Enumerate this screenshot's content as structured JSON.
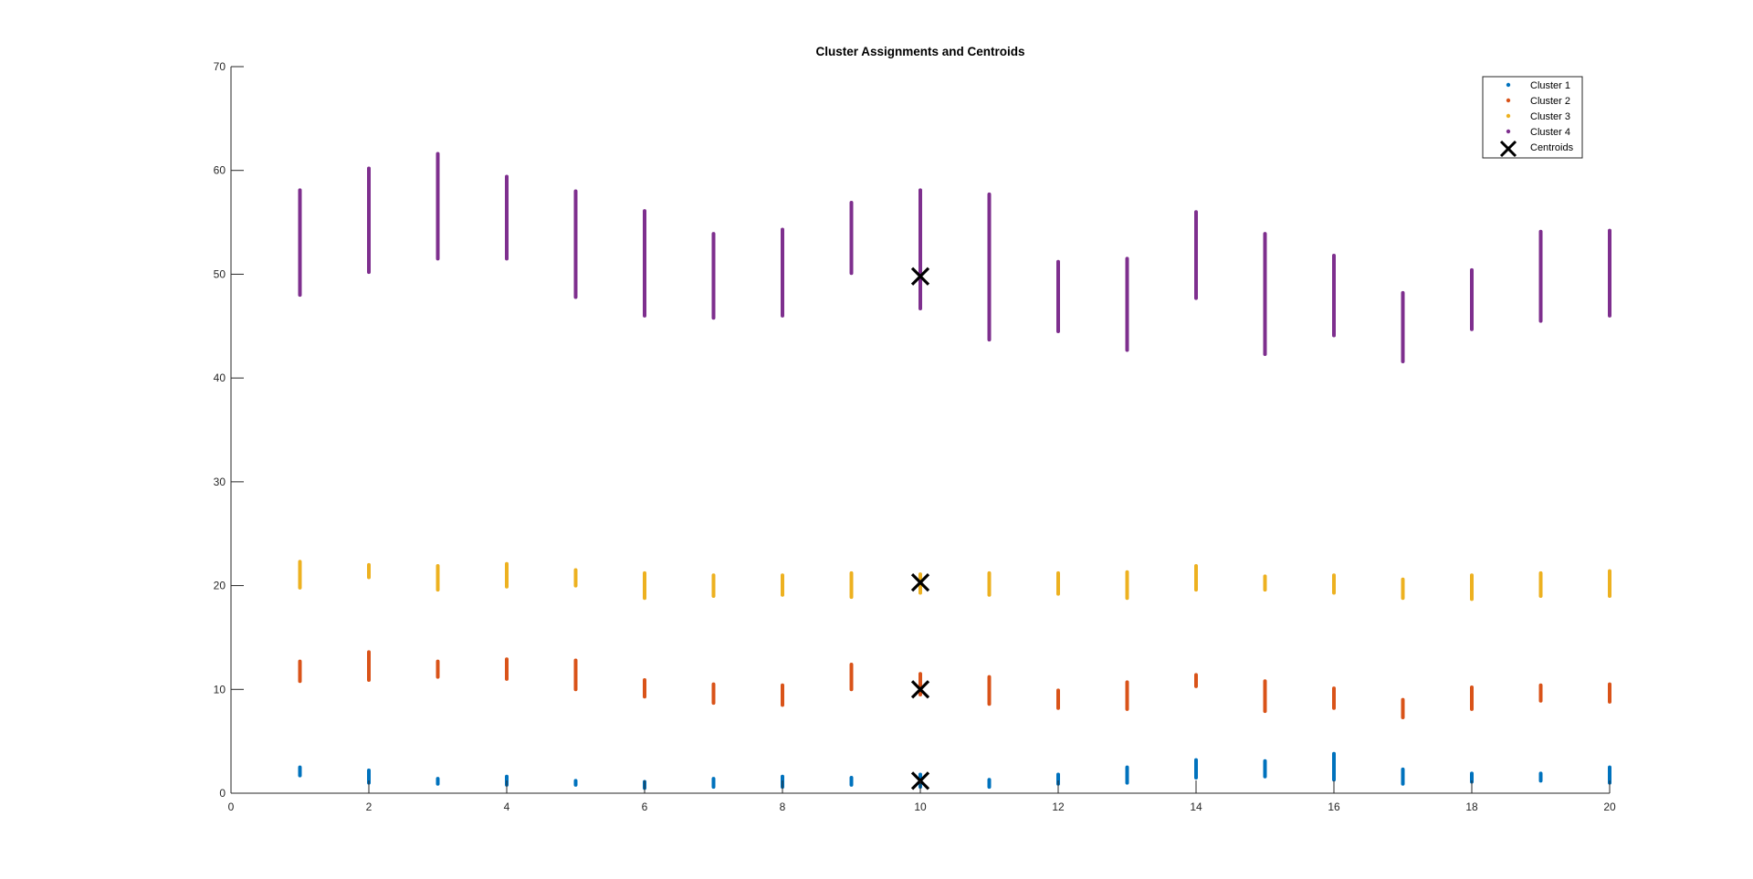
{
  "chart_data": {
    "type": "scatter",
    "title": "Cluster Assignments and Centroids",
    "xlabel": "",
    "ylabel": "",
    "xlim": [
      0,
      20
    ],
    "ylim": [
      0,
      70
    ],
    "xticks": [
      0,
      2,
      4,
      6,
      8,
      10,
      12,
      14,
      16,
      18,
      20
    ],
    "yticks": [
      0,
      10,
      20,
      30,
      40,
      50,
      60,
      70
    ],
    "grid": false,
    "legend_position": "top-right",
    "x": [
      1,
      2,
      3,
      4,
      5,
      6,
      7,
      8,
      9,
      10,
      11,
      12,
      13,
      14,
      15,
      16,
      17,
      18,
      19,
      20
    ],
    "series": [
      {
        "name": "Cluster 1",
        "color": "#0072BD",
        "ranges": [
          [
            1.7,
            2.5
          ],
          [
            1.0,
            2.2
          ],
          [
            0.9,
            1.4
          ],
          [
            0.8,
            1.6
          ],
          [
            0.8,
            1.2
          ],
          [
            0.5,
            1.1
          ],
          [
            0.6,
            1.4
          ],
          [
            0.6,
            1.6
          ],
          [
            0.8,
            1.5
          ],
          [
            0.6,
            1.8
          ],
          [
            0.6,
            1.3
          ],
          [
            0.9,
            1.8
          ],
          [
            1.0,
            2.5
          ],
          [
            1.5,
            3.2
          ],
          [
            1.6,
            3.1
          ],
          [
            1.3,
            3.8
          ],
          [
            0.9,
            2.3
          ],
          [
            1.1,
            1.9
          ],
          [
            1.2,
            1.9
          ],
          [
            1.0,
            2.5
          ]
        ]
      },
      {
        "name": "Cluster 2",
        "color": "#D95319",
        "ranges": [
          [
            10.8,
            12.7
          ],
          [
            10.9,
            13.6
          ],
          [
            11.2,
            12.7
          ],
          [
            11.0,
            12.9
          ],
          [
            10.0,
            12.8
          ],
          [
            9.3,
            10.9
          ],
          [
            8.7,
            10.5
          ],
          [
            8.5,
            10.4
          ],
          [
            10.0,
            12.4
          ],
          [
            9.5,
            11.5
          ],
          [
            8.6,
            11.2
          ],
          [
            8.2,
            9.9
          ],
          [
            8.1,
            10.7
          ],
          [
            10.3,
            11.4
          ],
          [
            7.9,
            10.8
          ],
          [
            8.2,
            10.1
          ],
          [
            7.3,
            9.0
          ],
          [
            8.1,
            10.2
          ],
          [
            8.9,
            10.4
          ],
          [
            8.8,
            10.5
          ]
        ]
      },
      {
        "name": "Cluster 3",
        "color": "#EDB120",
        "ranges": [
          [
            19.8,
            22.3
          ],
          [
            20.8,
            22.0
          ],
          [
            19.6,
            21.9
          ],
          [
            19.9,
            22.1
          ],
          [
            20.0,
            21.5
          ],
          [
            18.8,
            21.2
          ],
          [
            19.0,
            21.0
          ],
          [
            19.1,
            21.0
          ],
          [
            18.9,
            21.2
          ],
          [
            19.3,
            21.1
          ],
          [
            19.1,
            21.2
          ],
          [
            19.2,
            21.2
          ],
          [
            18.8,
            21.3
          ],
          [
            19.6,
            21.9
          ],
          [
            19.6,
            20.9
          ],
          [
            19.3,
            21.0
          ],
          [
            18.8,
            20.6
          ],
          [
            18.7,
            21.0
          ],
          [
            19.0,
            21.2
          ],
          [
            19.0,
            21.4
          ]
        ]
      },
      {
        "name": "Cluster 4",
        "color": "#7E2F8E",
        "ranges": [
          [
            48.0,
            58.1
          ],
          [
            50.2,
            60.2
          ],
          [
            51.5,
            61.6
          ],
          [
            51.5,
            59.4
          ],
          [
            47.8,
            58.0
          ],
          [
            46.0,
            56.1
          ],
          [
            45.8,
            53.9
          ],
          [
            46.0,
            54.3
          ],
          [
            50.1,
            56.9
          ],
          [
            46.7,
            58.1
          ],
          [
            43.7,
            57.7
          ],
          [
            44.5,
            51.2
          ],
          [
            42.7,
            51.5
          ],
          [
            47.7,
            56.0
          ],
          [
            42.3,
            53.9
          ],
          [
            44.1,
            51.8
          ],
          [
            41.6,
            48.2
          ],
          [
            44.7,
            50.4
          ],
          [
            45.5,
            54.1
          ],
          [
            46.0,
            54.2
          ]
        ]
      }
    ],
    "centroids": {
      "name": "Centroids",
      "color": "#000000",
      "points": [
        [
          10,
          1.2
        ],
        [
          10,
          10.0
        ],
        [
          10,
          20.3
        ],
        [
          10,
          49.8
        ]
      ]
    }
  }
}
